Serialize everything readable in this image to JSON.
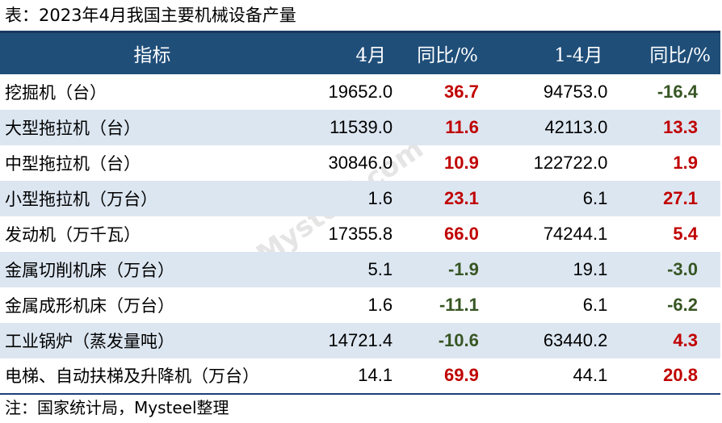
{
  "title": "表：2023年4月我国主要机械设备产量",
  "watermark": "我的钢铁 Mysteel.com",
  "colors": {
    "header_bg": "#1f4e79",
    "alt_row": "#dce6f1",
    "positive": "#c00000",
    "negative": "#375623"
  },
  "columns": [
    "指标",
    "4月",
    "同比/%",
    "1-4月",
    "同比/%"
  ],
  "rows": [
    {
      "name": "挖掘机（台）",
      "m4": "19652.0",
      "yoy1": "36.7",
      "ytd": "94753.0",
      "yoy2": "-16.4"
    },
    {
      "name": "大型拖拉机（台）",
      "m4": "11539.0",
      "yoy1": "11.6",
      "ytd": "42113.0",
      "yoy2": "13.3"
    },
    {
      "name": "中型拖拉机（台）",
      "m4": "30846.0",
      "yoy1": "10.9",
      "ytd": "122722.0",
      "yoy2": "1.9"
    },
    {
      "name": "小型拖拉机（万台）",
      "m4": "1.6",
      "yoy1": "23.1",
      "ytd": "6.1",
      "yoy2": "27.1"
    },
    {
      "name": "发动机（万千瓦）",
      "m4": "17355.8",
      "yoy1": "66.0",
      "ytd": "74244.1",
      "yoy2": "5.4"
    },
    {
      "name": "金属切削机床（万台）",
      "m4": "5.1",
      "yoy1": "-1.9",
      "ytd": "19.1",
      "yoy2": "-3.0"
    },
    {
      "name": "金属成形机床（万台）",
      "m4": "1.6",
      "yoy1": "-11.1",
      "ytd": "6.1",
      "yoy2": "-6.2"
    },
    {
      "name": "工业锅炉（蒸发量吨）",
      "m4": "14721.4",
      "yoy1": "-10.6",
      "ytd": "63440.2",
      "yoy2": "4.3"
    },
    {
      "name": "电梯、自动扶梯及升降机（万台）",
      "m4": "14.1",
      "yoy1": "69.9",
      "ytd": "44.1",
      "yoy2": "20.8"
    }
  ],
  "note": "注：国家统计局，Mysteel整理"
}
